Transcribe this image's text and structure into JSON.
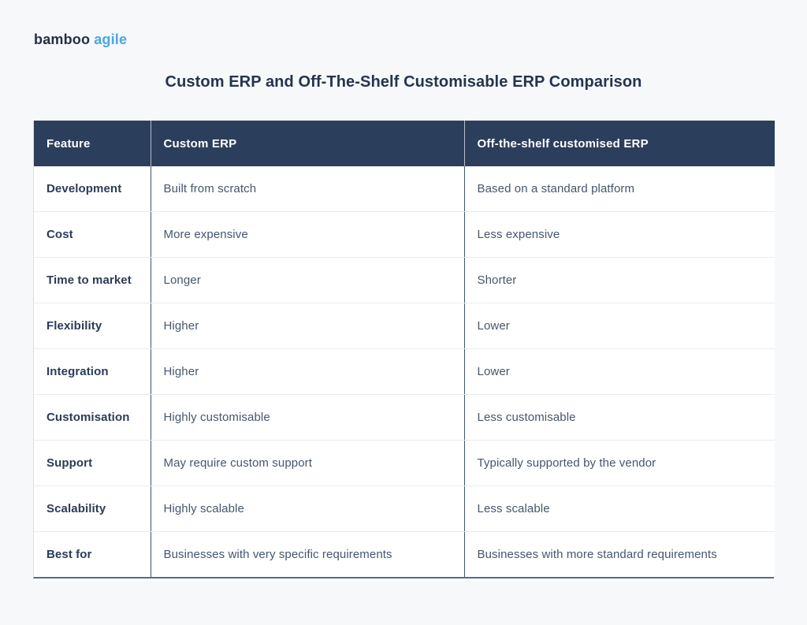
{
  "page": {
    "background_color": "#f7f8fa",
    "title": "Custom ERP and Off-The-Shelf Customisable ERP Comparison",
    "title_color": "#24344f"
  },
  "logo": {
    "part1": "bamboo",
    "part2": "agile",
    "part1_color": "#232f48",
    "part2_color": "#4aa6e6"
  },
  "table": {
    "header_bg_color": "#2b3e5c",
    "header_text_color": "#ffffff",
    "divider_vertical_color": "#3f5472",
    "divider_horizontal_color": "#e8ecf2",
    "header": {
      "feature": "Feature",
      "custom": "Custom ERP",
      "shelf": "Off-the-shelf customised ERP"
    },
    "rows": [
      {
        "feature": "Development",
        "custom": "Built from scratch",
        "shelf": "Based on a standard platform"
      },
      {
        "feature": "Cost",
        "custom": "More expensive",
        "shelf": "Less expensive"
      },
      {
        "feature": "Time to market",
        "custom": "Longer",
        "shelf": "Shorter"
      },
      {
        "feature": "Flexibility",
        "custom": "Higher",
        "shelf": "Lower"
      },
      {
        "feature": "Integration",
        "custom": "Higher",
        "shelf": "Lower"
      },
      {
        "feature": "Customisation",
        "custom": "Highly customisable",
        "shelf": "Less customisable"
      },
      {
        "feature": "Support",
        "custom": "May require custom support",
        "shelf": "Typically supported by the vendor"
      },
      {
        "feature": "Scalability",
        "custom": "Highly scalable",
        "shelf": "Less scalable"
      },
      {
        "feature": "Best for",
        "custom": "Businesses with very specific requirements",
        "shelf": "Businesses with more standard requirements"
      }
    ]
  }
}
